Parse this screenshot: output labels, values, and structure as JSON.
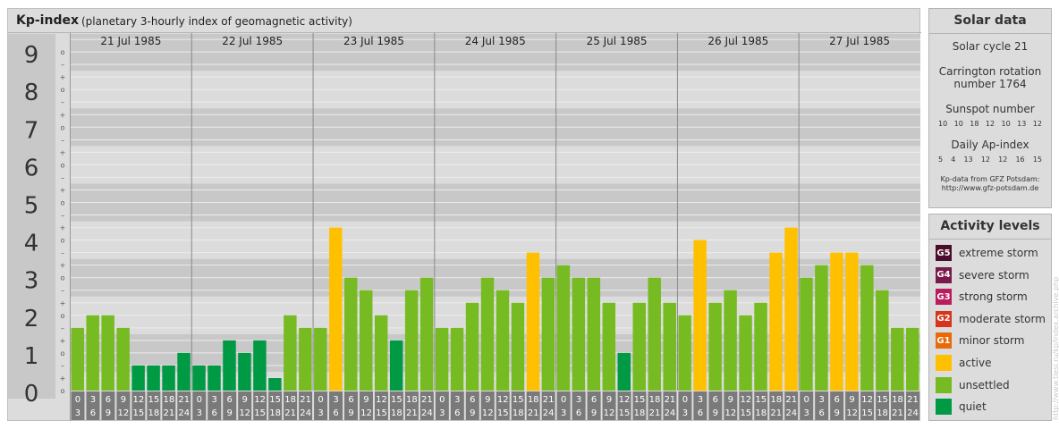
{
  "header": {
    "title": "Kp-index",
    "subtitle": "(planetary 3-hourly index of geomagnetic activity)"
  },
  "chart_data": {
    "type": "bar",
    "ylim": [
      0,
      9
    ],
    "y_ticks": [
      "0",
      "1",
      "2",
      "3",
      "4",
      "5",
      "6",
      "7",
      "8",
      "9"
    ],
    "minor_marks": [
      "o",
      "+",
      "–"
    ],
    "days": [
      "21 Jul 1985",
      "22 Jul 1985",
      "23 Jul 1985",
      "24 Jul 1985",
      "25 Jul 1985",
      "26 Jul 1985",
      "27 Jul 1985"
    ],
    "interval_start": [
      "0",
      "3",
      "6",
      "9",
      "12",
      "15",
      "18",
      "21"
    ],
    "interval_end": [
      "3",
      "6",
      "9",
      "12",
      "15",
      "18",
      "21",
      "24"
    ],
    "values": [
      1.667,
      2.0,
      2.0,
      1.667,
      0.667,
      0.667,
      0.667,
      1.0,
      0.667,
      0.667,
      1.333,
      1.0,
      1.333,
      0.333,
      2.0,
      1.667,
      1.667,
      4.333,
      3.0,
      2.667,
      2.0,
      1.333,
      2.667,
      3.0,
      1.667,
      1.667,
      2.333,
      3.0,
      2.667,
      2.333,
      3.667,
      3.0,
      3.333,
      3.0,
      3.0,
      2.333,
      1.0,
      2.333,
      3.0,
      2.333,
      2.0,
      4.0,
      2.333,
      2.667,
      2.0,
      2.333,
      3.667,
      4.333,
      3.0,
      3.333,
      3.667,
      3.667,
      3.333,
      2.667,
      1.667,
      1.667
    ],
    "levels": [
      "unsettled",
      "unsettled",
      "unsettled",
      "unsettled",
      "quiet",
      "quiet",
      "quiet",
      "quiet",
      "quiet",
      "quiet",
      "quiet",
      "quiet",
      "quiet",
      "quiet",
      "unsettled",
      "unsettled",
      "unsettled",
      "active",
      "unsettled",
      "unsettled",
      "unsettled",
      "quiet",
      "unsettled",
      "unsettled",
      "unsettled",
      "unsettled",
      "unsettled",
      "unsettled",
      "unsettled",
      "unsettled",
      "active",
      "unsettled",
      "unsettled",
      "unsettled",
      "unsettled",
      "unsettled",
      "quiet",
      "unsettled",
      "unsettled",
      "unsettled",
      "unsettled",
      "active",
      "unsettled",
      "unsettled",
      "unsettled",
      "unsettled",
      "active",
      "active",
      "unsettled",
      "unsettled",
      "active",
      "active",
      "unsettled",
      "unsettled",
      "unsettled",
      "unsettled"
    ]
  },
  "colors": {
    "quiet": "#009944",
    "unsettled": "#77bb22",
    "active": "#ffc000",
    "minor": "#e86a0a",
    "moderate": "#d8341c",
    "strong": "#bb1c5c",
    "severe": "#7a1a4a",
    "extreme": "#4a0d2b"
  },
  "solar": {
    "title": "Solar data",
    "cycle": "Solar cycle 21",
    "carrington_line1": "Carrington rotation",
    "carrington_line2": "number 1764",
    "sunspot_label": "Sunspot number",
    "sunspot_values": [
      "10",
      "10",
      "18",
      "12",
      "10",
      "13",
      "12"
    ],
    "ap_label": "Daily Ap-index",
    "ap_values": [
      "5",
      "4",
      "13",
      "12",
      "12",
      "16",
      "15"
    ],
    "credit_line1": "Kp-data from GFZ Potsdam:",
    "credit_line2": "http://www.gfz-potsdam.de"
  },
  "activity": {
    "title": "Activity levels",
    "items": [
      {
        "badge": "G5",
        "label": "extreme storm",
        "color": "#4a0d2b"
      },
      {
        "badge": "G4",
        "label": "severe storm",
        "color": "#7a1a4a"
      },
      {
        "badge": "G3",
        "label": "strong storm",
        "color": "#bb1c5c"
      },
      {
        "badge": "G2",
        "label": "moderate storm",
        "color": "#d8341c"
      },
      {
        "badge": "G1",
        "label": "minor storm",
        "color": "#e86a0a"
      },
      {
        "badge": "",
        "label": "active",
        "color": "#ffc000"
      },
      {
        "badge": "",
        "label": "unsettled",
        "color": "#77bb22"
      },
      {
        "badge": "",
        "label": "quiet",
        "color": "#009944"
      }
    ]
  },
  "watermark": "http://www.tiesi.ru/kp/index.archive.php"
}
